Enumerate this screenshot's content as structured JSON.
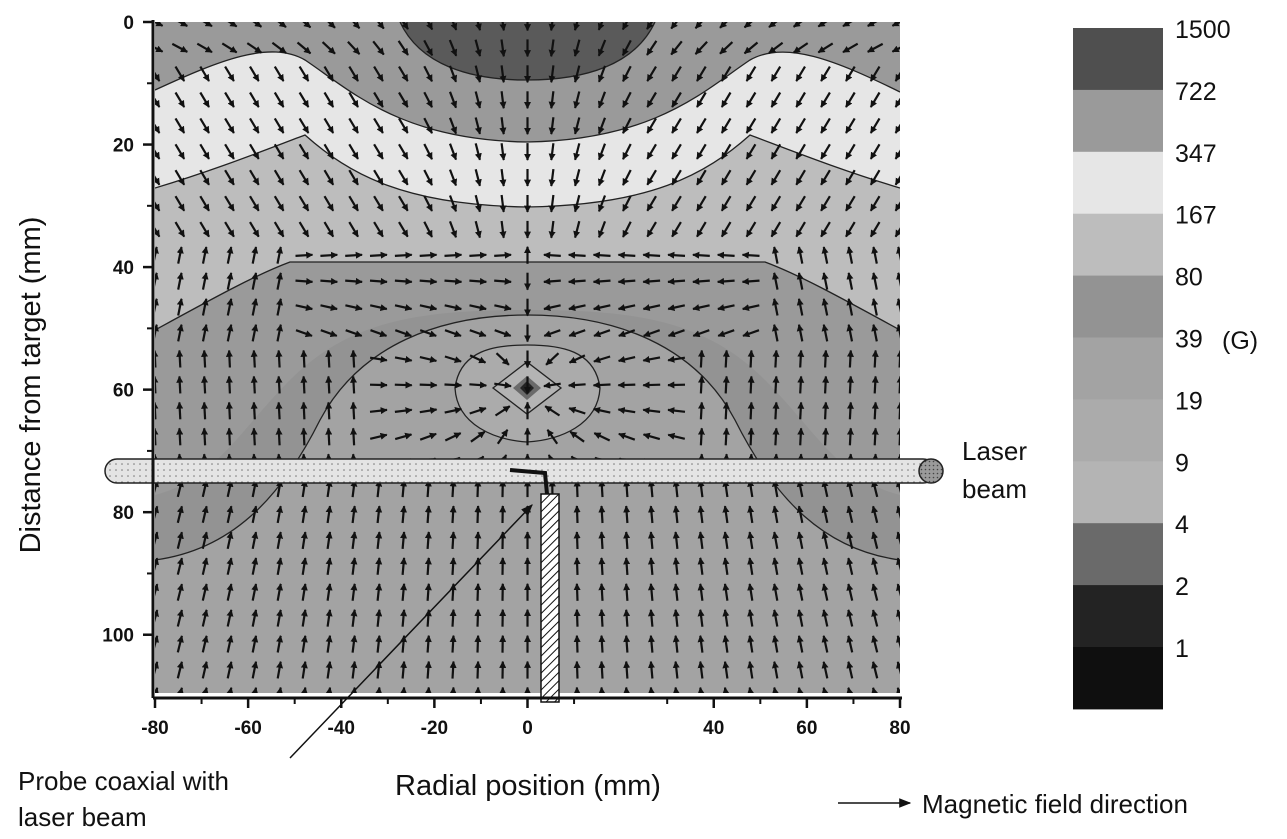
{
  "chart_data": {
    "type": "heatmap",
    "x": {
      "label": "Radial position (mm)",
      "range": [
        -80,
        80
      ],
      "ticks": [
        -80,
        -60,
        -40,
        -20,
        0,
        40,
        60,
        80
      ]
    },
    "y": {
      "label": "Distance from target (mm)",
      "range": [
        0,
        110
      ],
      "inverted": true,
      "ticks": [
        0,
        20,
        40,
        60,
        80,
        100
      ]
    },
    "colorbar": {
      "unit": "(G)",
      "levels": [
        "1500",
        "722",
        "347",
        "167",
        "80",
        "39",
        "19",
        "9",
        "4",
        "2",
        "1"
      ],
      "colors": [
        "#4f4f4f",
        "#9a9a9a",
        "#e6e6e6",
        "#bdbdbd",
        "#939393",
        "#a3a3a3",
        "#ababab",
        "#b4b4b4",
        "#6a6a6a",
        "#232323",
        "#0f0f0f"
      ]
    },
    "annotations": {
      "laser": "Laser\nbeam",
      "probe": "Probe coaxial with\nlaser beam",
      "legend_arrow": "Magnetic field direction"
    },
    "probe_position": {
      "x": 0,
      "y": 73
    },
    "field_center": {
      "x": 0,
      "y": 60
    }
  }
}
